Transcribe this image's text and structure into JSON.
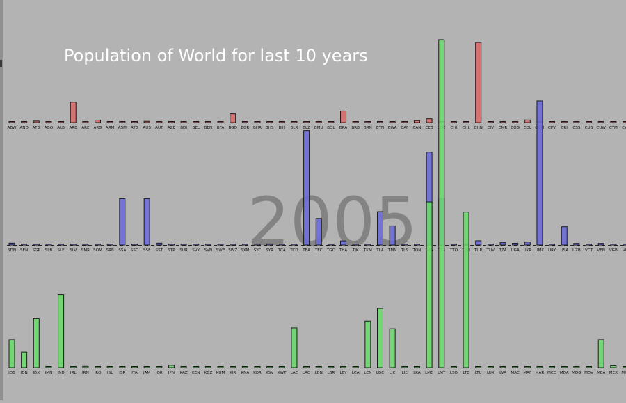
{
  "chart_data": {
    "type": "bar",
    "title": "Population of World for last 10 years",
    "year": "2005",
    "colors": {
      "row1": "#d86c6c",
      "row2": "#6c6cd8",
      "row3": "#6cd86c",
      "background": "#b3b3b3"
    },
    "rows": [
      {
        "name": "",
        "categories": [
          "ABW",
          "AND",
          "AFG",
          "AGO",
          "ALB",
          "ARB",
          "ARE",
          "ARG",
          "ARM",
          "ASM",
          "ATG",
          "AUS",
          "AUT",
          "AZE",
          "BDI",
          "BEL",
          "BEN",
          "BFA",
          "BGD",
          "BGR",
          "BHR",
          "BHS",
          "BIH",
          "BLR",
          "BLZ",
          "BMU",
          "BOL",
          "BRA",
          "BRB",
          "BRN",
          "BTN",
          "BWA",
          "CAF",
          "CAN",
          "CEB",
          "CHE",
          "CHI",
          "CHL",
          "CHN",
          "CIV",
          "CMR",
          "COG",
          "COL",
          "COM",
          "CPV",
          "CRI",
          "CSS",
          "CUB",
          "CUW",
          "CYM",
          "CYP"
        ],
        "values": [
          0.1,
          0.1,
          24,
          16,
          3,
          330,
          4,
          39,
          3,
          0.1,
          0.1,
          20,
          8,
          8,
          7,
          10,
          8,
          13,
          140,
          8,
          1,
          0.3,
          4,
          10,
          0.3,
          0.1,
          9,
          186,
          0.3,
          0.4,
          0.6,
          2,
          4,
          32,
          60,
          7,
          0.2,
          16,
          1300,
          17,
          17,
          4,
          42,
          0.6,
          0.5,
          4,
          7,
          11,
          0.2,
          0.1,
          1
        ]
      },
      {
        "name": "",
        "categories": [
          "SDN",
          "SEN",
          "SGP",
          "SLB",
          "SLE",
          "SLV",
          "SMR",
          "SOM",
          "SRB",
          "SSA",
          "SSD",
          "SSF",
          "SST",
          "STP",
          "SUR",
          "SVK",
          "SVN",
          "SWE",
          "SWZ",
          "SXM",
          "SYC",
          "SYR",
          "TCA",
          "TCD",
          "TEA",
          "TEC",
          "TGO",
          "THA",
          "TJK",
          "TKM",
          "TLA",
          "TMN",
          "TLS",
          "TON",
          "TSA",
          "TSS",
          "TTO",
          "TUN",
          "TUR",
          "TUV",
          "TZA",
          "UGA",
          "UKR",
          "UMC",
          "URY",
          "USA",
          "UZB",
          "VCT",
          "VEN",
          "VGB",
          "VIR"
        ],
        "values": [
          30,
          11,
          4,
          0.5,
          5,
          6,
          0.1,
          9,
          7,
          750,
          8,
          750,
          30,
          0.2,
          0.5,
          5,
          2,
          9,
          1,
          0.1,
          0.1,
          18,
          0.1,
          10,
          1850,
          430,
          5,
          66,
          7,
          5,
          540,
          310,
          1,
          0.1,
          1500,
          750,
          1,
          10,
          68,
          0.1,
          38,
          28,
          47,
          2330,
          3,
          296,
          26,
          0.1,
          26,
          0.1,
          0.1
        ]
      },
      {
        "name": "",
        "categories": [
          "IDB",
          "IDN",
          "IDX",
          "IMN",
          "IND",
          "IRL",
          "IRN",
          "IRQ",
          "ISL",
          "ISR",
          "ITA",
          "JAM",
          "JOR",
          "JPN",
          "KAZ",
          "KEN",
          "KGZ",
          "KHM",
          "KIR",
          "KNA",
          "KOR",
          "KSV",
          "KWT",
          "LAC",
          "LAO",
          "LBN",
          "LBR",
          "LBY",
          "LCA",
          "LCN",
          "LDC",
          "LIC",
          "LIE",
          "LKA",
          "LMC",
          "LMY",
          "LSO",
          "LTE",
          "LTU",
          "LUX",
          "LVA",
          "MAC",
          "MAF",
          "MAR",
          "MCO",
          "MDA",
          "MDG",
          "MDV",
          "MEA",
          "MEX",
          "MHL"
        ],
        "values": [
          1650,
          900,
          2900,
          0.1,
          4300,
          4,
          70,
          27,
          0.3,
          7,
          59,
          3,
          5,
          128,
          15,
          36,
          5,
          13,
          0.1,
          0.1,
          48,
          2,
          2,
          2350,
          6,
          4,
          3,
          6,
          0.2,
          2750,
          3500,
          2300,
          0.1,
          20,
          9800,
          19400,
          2,
          9200,
          3,
          0.5,
          2,
          0.5,
          0.1,
          30,
          0.1,
          3,
          18,
          0.3,
          1650,
          108,
          0.1
        ]
      }
    ]
  }
}
